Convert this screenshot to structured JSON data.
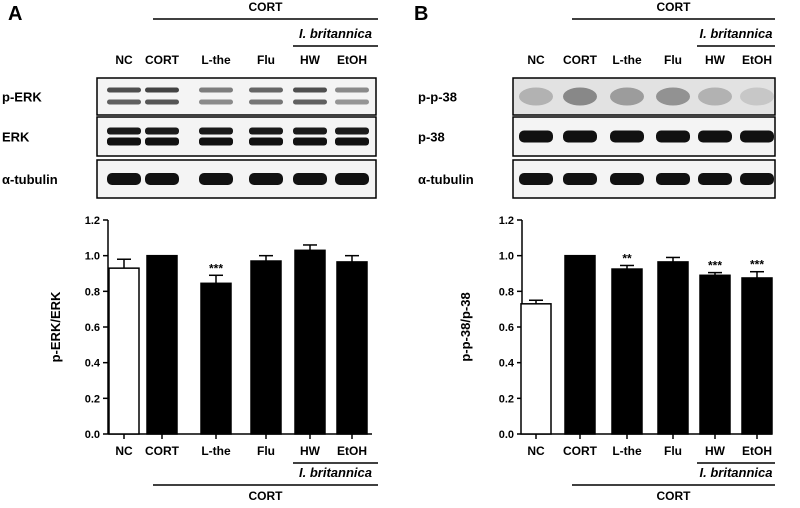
{
  "panels": [
    {
      "letter": "A",
      "top_group": "CORT",
      "top_subgroup": "I. britannica",
      "lanes": [
        "NC",
        "CORT",
        "L-the",
        "Flu",
        "HW",
        "EtOH"
      ],
      "blots": [
        {
          "label": "p-ERK",
          "pattern": "doublet-weak"
        },
        {
          "label": "ERK",
          "pattern": "doublet-strong"
        },
        {
          "label": "α-tubulin",
          "pattern": "single-strong"
        }
      ],
      "bottom_group": "CORT",
      "bottom_subgroup": "I. britannica"
    },
    {
      "letter": "B",
      "top_group": "CORT",
      "top_subgroup": "I. britannica",
      "lanes": [
        "NC",
        "CORT",
        "L-the",
        "Flu",
        "HW",
        "EtOH"
      ],
      "blots": [
        {
          "label": "p-p-38",
          "pattern": "diffuse"
        },
        {
          "label": "p-38",
          "pattern": "single-strong"
        },
        {
          "label": "α-tubulin",
          "pattern": "single-strong"
        }
      ],
      "bottom_group": "CORT",
      "bottom_subgroup": "I. britannica"
    }
  ],
  "chart_data": [
    {
      "type": "bar",
      "categories": [
        "NC",
        "CORT",
        "L-the",
        "Flu",
        "HW",
        "EtOH"
      ],
      "values": [
        0.93,
        1.0,
        0.845,
        0.97,
        1.03,
        0.965
      ],
      "errors": [
        0.05,
        0.0,
        0.045,
        0.03,
        0.03,
        0.035
      ],
      "significance": [
        "",
        "",
        "***",
        "",
        "",
        ""
      ],
      "bar_fill": [
        "#ffffff",
        "#000000",
        "#000000",
        "#000000",
        "#000000",
        "#000000"
      ],
      "ylabel": "p-ERK/ERK",
      "xlabel": "",
      "ylim": [
        0.0,
        1.2
      ],
      "yticks": [
        "0.0",
        "0.2",
        "0.4",
        "0.6",
        "0.8",
        "1.0",
        "1.2"
      ]
    },
    {
      "type": "bar",
      "categories": [
        "NC",
        "CORT",
        "L-the",
        "Flu",
        "HW",
        "EtOH"
      ],
      "values": [
        0.73,
        1.0,
        0.925,
        0.965,
        0.89,
        0.875
      ],
      "errors": [
        0.02,
        0.0,
        0.02,
        0.025,
        0.015,
        0.035
      ],
      "significance": [
        "",
        "",
        "**",
        "",
        "***",
        "***"
      ],
      "bar_fill": [
        "#ffffff",
        "#000000",
        "#000000",
        "#000000",
        "#000000",
        "#000000"
      ],
      "ylabel": "p-p-38/p-38",
      "xlabel": "",
      "ylim": [
        0.0,
        1.2
      ],
      "yticks": [
        "0.0",
        "0.2",
        "0.4",
        "0.6",
        "0.8",
        "1.0",
        "1.2"
      ]
    }
  ]
}
